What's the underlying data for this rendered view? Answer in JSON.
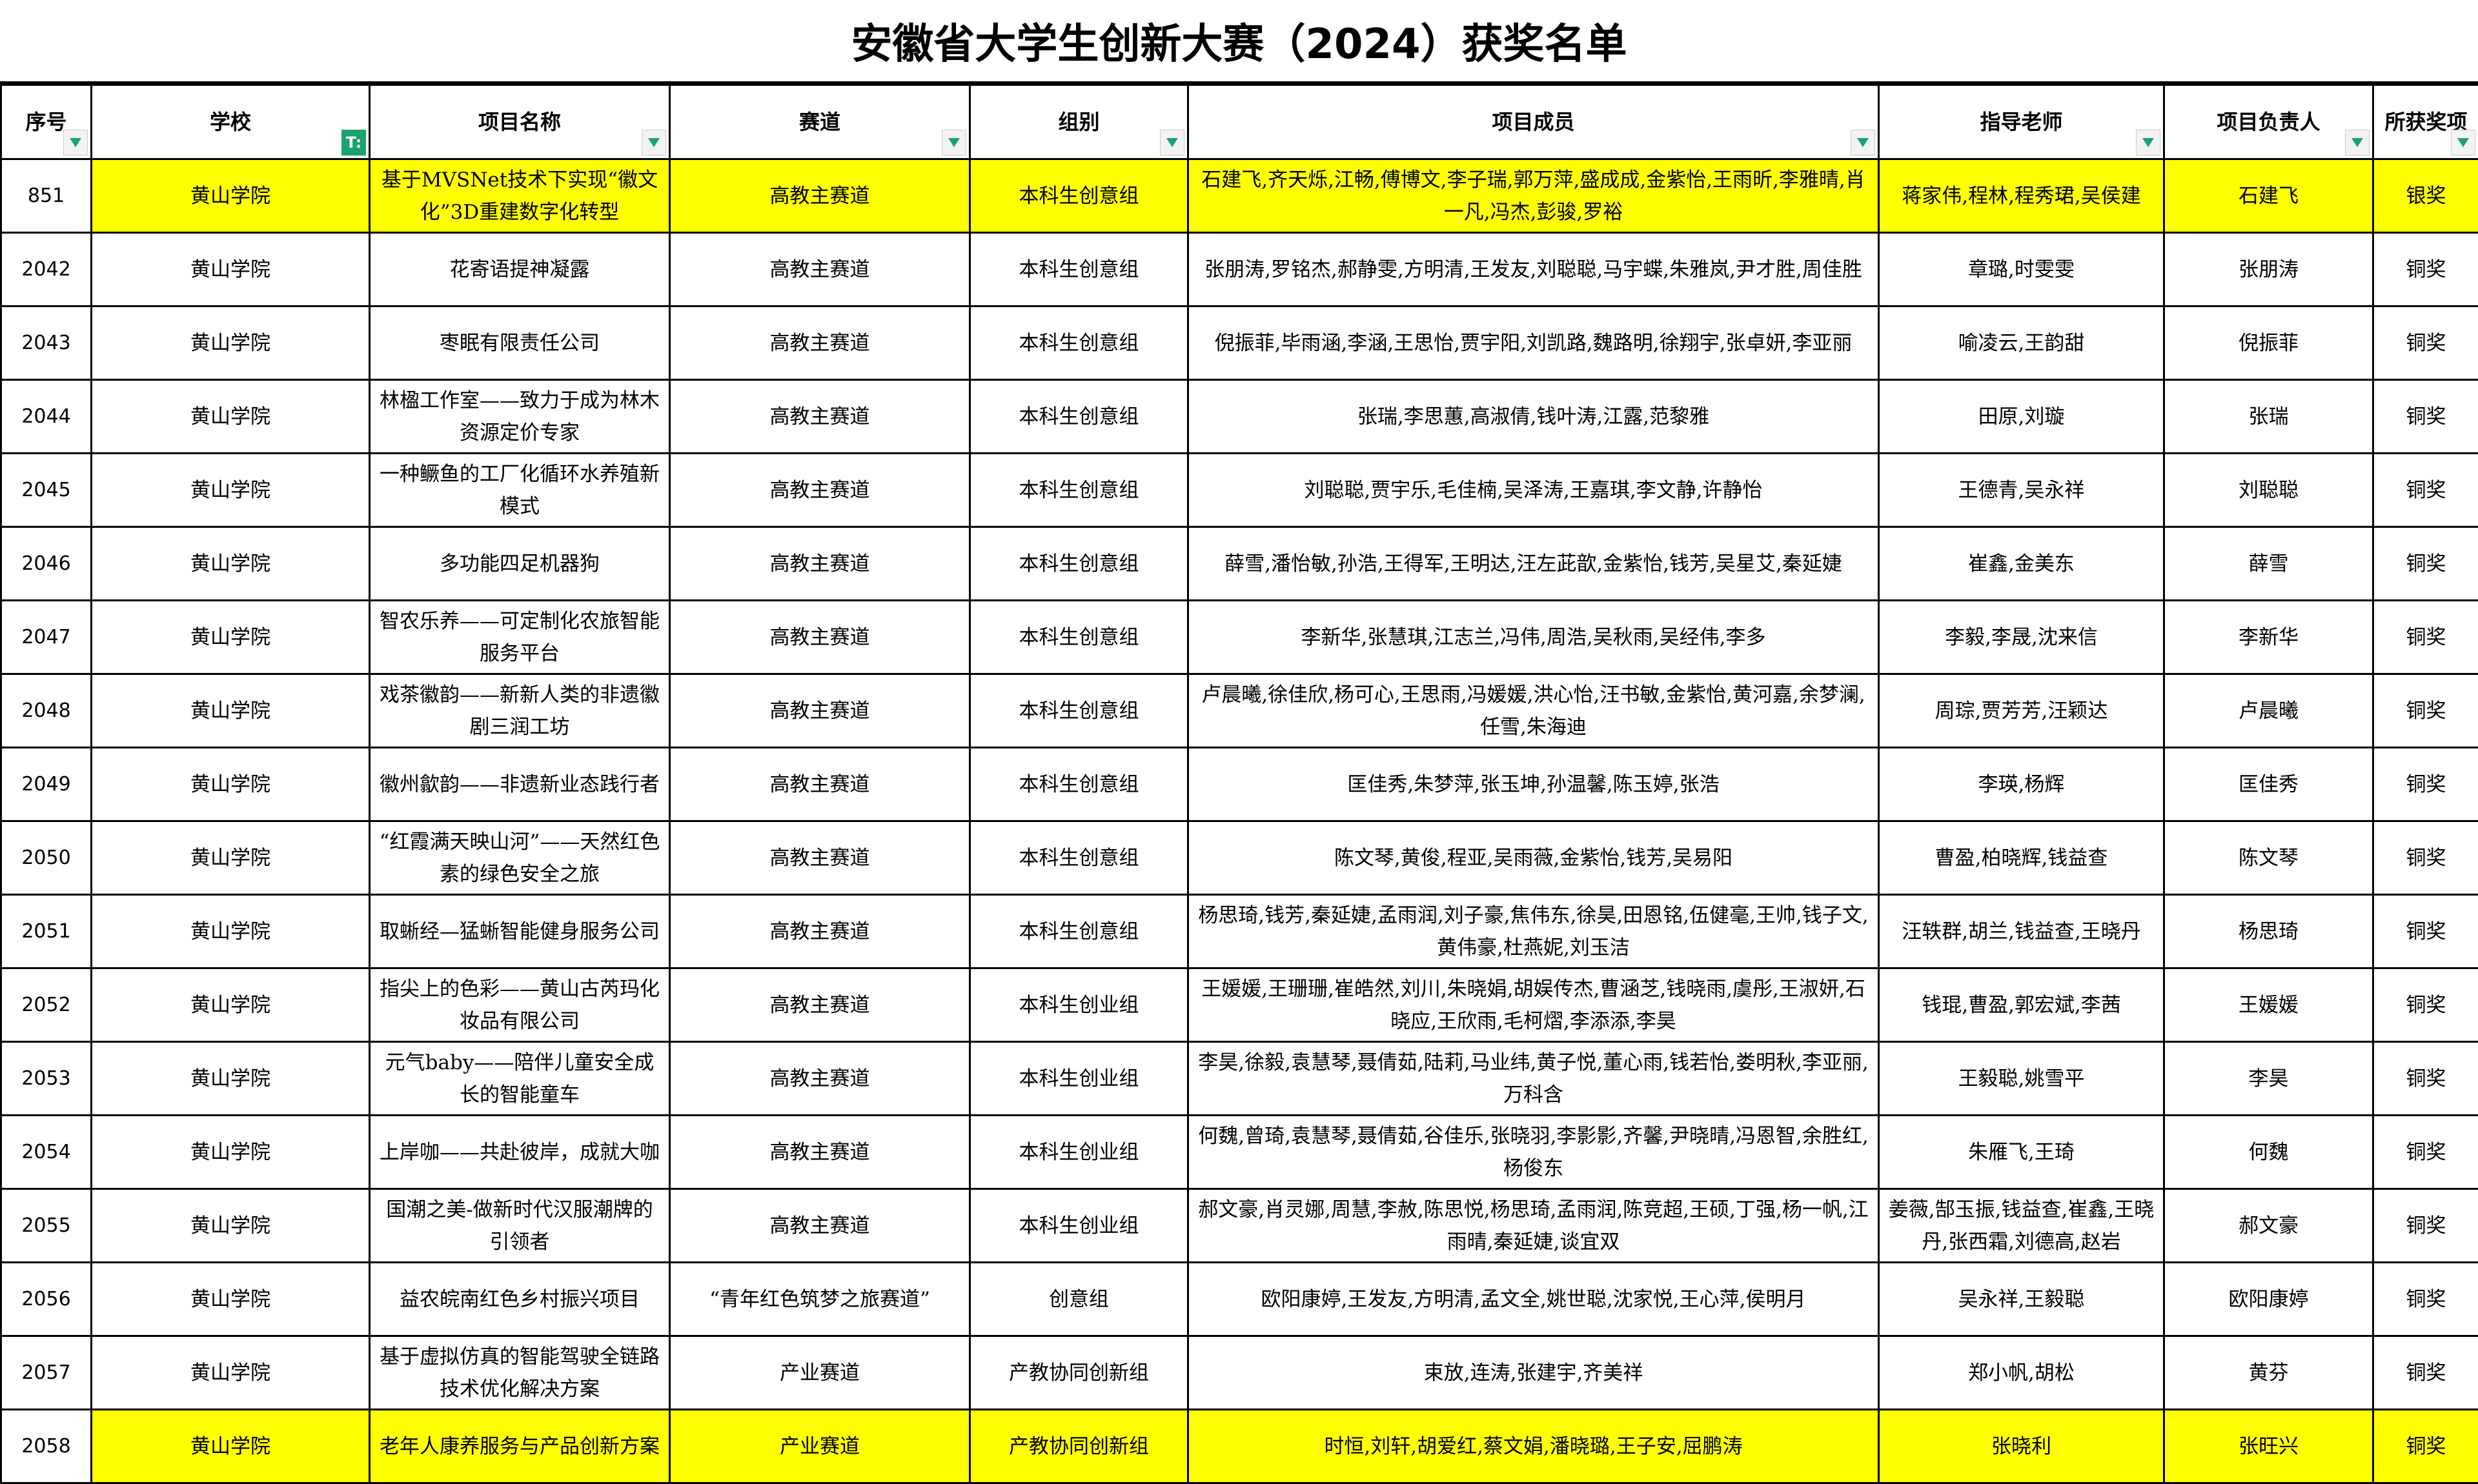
{
  "title": "安徽省大学生创新大赛（2024）获奖名单",
  "colors": {
    "highlight": "#ffff00",
    "filter_accent": "#1aa36b"
  },
  "headers": [
    "序号",
    "学校",
    "项目名称",
    "赛道",
    "组别",
    "项目成员",
    "指导老师",
    "项目负责人",
    "所获奖项"
  ],
  "active_filter_column": 1,
  "rows": [
    {
      "id": "851",
      "school": "黄山学院",
      "project": "基于MVSNet技术下实现“徽文化”3D重建数字化转型",
      "track": "高教主赛道",
      "group": "本科生创意组",
      "members": "石建飞,齐天烁,江畅,傅博文,李子瑞,郭万萍,盛成成,金紫怡,王雨昕,李雅晴,肖一凡,冯杰,彭骏,罗裕",
      "advisors": "蒋家伟,程林,程秀珺,吴侯建",
      "leader": "石建飞",
      "award": "银奖",
      "highlight": true
    },
    {
      "id": "2042",
      "school": "黄山学院",
      "project": "花寄语提神凝露",
      "track": "高教主赛道",
      "group": "本科生创意组",
      "members": "张朋涛,罗铭杰,郝静雯,方明清,王发友,刘聪聪,马宇蝶,朱雅岚,尹才胜,周佳胜",
      "advisors": "章璐,时雯雯",
      "leader": "张朋涛",
      "award": "铜奖"
    },
    {
      "id": "2043",
      "school": "黄山学院",
      "project": "枣眠有限责任公司",
      "track": "高教主赛道",
      "group": "本科生创意组",
      "members": "倪振菲,毕雨涵,李涵,王思怡,贾宇阳,刘凯路,魏路明,徐翔宇,张卓妍,李亚丽",
      "advisors": "喻凌云,王韵甜",
      "leader": "倪振菲",
      "award": "铜奖"
    },
    {
      "id": "2044",
      "school": "黄山学院",
      "project": "林楹工作室——致力于成为林木资源定价专家",
      "track": "高教主赛道",
      "group": "本科生创意组",
      "members": "张瑞,李思蕙,高淑倩,钱叶涛,江露,范黎雅",
      "advisors": "田原,刘璇",
      "leader": "张瑞",
      "award": "铜奖"
    },
    {
      "id": "2045",
      "school": "黄山学院",
      "project": "一种鳜鱼的工厂化循环水养殖新模式",
      "track": "高教主赛道",
      "group": "本科生创意组",
      "members": "刘聪聪,贾宇乐,毛佳楠,吴泽涛,王嘉琪,李文静,许静怡",
      "advisors": "王德青,吴永祥",
      "leader": "刘聪聪",
      "award": "铜奖"
    },
    {
      "id": "2046",
      "school": "黄山学院",
      "project": "多功能四足机器狗",
      "track": "高教主赛道",
      "group": "本科生创意组",
      "members": "薛雪,潘怡敏,孙浩,王得军,王明达,汪左茈歆,金紫怡,钱芳,吴星艾,秦延婕",
      "advisors": "崔鑫,金美东",
      "leader": "薛雪",
      "award": "铜奖"
    },
    {
      "id": "2047",
      "school": "黄山学院",
      "project": "智农乐养——可定制化农旅智能服务平台",
      "track": "高教主赛道",
      "group": "本科生创意组",
      "members": "李新华,张慧琪,江志兰,冯伟,周浩,吴秋雨,吴经伟,李多",
      "advisors": "李毅,李晟,沈来信",
      "leader": "李新华",
      "award": "铜奖"
    },
    {
      "id": "2048",
      "school": "黄山学院",
      "project": "戏茶徽韵——新新人类的非遗徽剧三润工坊",
      "track": "高教主赛道",
      "group": "本科生创意组",
      "members": "卢晨曦,徐佳欣,杨可心,王思雨,冯媛媛,洪心怡,汪书敏,金紫怡,黄河嘉,余梦澜,任雪,朱海迪",
      "advisors": "周琮,贾芳芳,汪颖达",
      "leader": "卢晨曦",
      "award": "铜奖"
    },
    {
      "id": "2049",
      "school": "黄山学院",
      "project": "徽州歙韵——非遗新业态践行者",
      "track": "高教主赛道",
      "group": "本科生创意组",
      "members": "匡佳秀,朱梦萍,张玉坤,孙温馨,陈玉婷,张浩",
      "advisors": "李瑛,杨辉",
      "leader": "匡佳秀",
      "award": "铜奖"
    },
    {
      "id": "2050",
      "school": "黄山学院",
      "project": "“红霞满天映山河”——天然红色素的绿色安全之旅",
      "track": "高教主赛道",
      "group": "本科生创意组",
      "members": "陈文琴,黄俊,程亚,吴雨薇,金紫怡,钱芳,吴易阳",
      "advisors": "曹盈,柏晓辉,钱益查",
      "leader": "陈文琴",
      "award": "铜奖"
    },
    {
      "id": "2051",
      "school": "黄山学院",
      "project": "取蜥经—猛蜥智能健身服务公司",
      "track": "高教主赛道",
      "group": "本科生创意组",
      "members": "杨思琦,钱芳,秦延婕,孟雨润,刘子豪,焦伟东,徐昊,田恩铭,伍健毫,王帅,钱子文,黄伟豪,杜燕妮,刘玉洁",
      "advisors": "汪轶群,胡兰,钱益查,王晓丹",
      "leader": "杨思琦",
      "award": "铜奖"
    },
    {
      "id": "2052",
      "school": "黄山学院",
      "project": "指尖上的色彩——黄山古芮玛化妆品有限公司",
      "track": "高教主赛道",
      "group": "本科生创业组",
      "members": "王媛媛,王珊珊,崔皓然,刘川,朱晓娟,胡娱传杰,曹涵芝,钱晓雨,虞彤,王淑妍,石晓应,王欣雨,毛柯熠,李添添,李昊",
      "advisors": "钱琨,曹盈,郭宏斌,李茜",
      "leader": "王媛媛",
      "award": "铜奖"
    },
    {
      "id": "2053",
      "school": "黄山学院",
      "project": "元气baby——陪伴儿童安全成长的智能童车",
      "track": "高教主赛道",
      "group": "本科生创业组",
      "members": "李昊,徐毅,袁慧琴,聂倩茹,陆莉,马业纬,黄子悦,董心雨,钱若怡,娄明秋,李亚丽,万科含",
      "advisors": "王毅聪,姚雪平",
      "leader": "李昊",
      "award": "铜奖"
    },
    {
      "id": "2054",
      "school": "黄山学院",
      "project": "上岸咖——共赴彼岸，成就大咖",
      "track": "高教主赛道",
      "group": "本科生创业组",
      "members": "何魏,曾琦,袁慧琴,聂倩茹,谷佳乐,张晓羽,李影影,齐馨,尹晓晴,冯恩智,余胜红,杨俊东",
      "advisors": "朱雁飞,王琦",
      "leader": "何魏",
      "award": "铜奖"
    },
    {
      "id": "2055",
      "school": "黄山学院",
      "project": "国潮之美-做新时代汉服潮牌的引领者",
      "track": "高教主赛道",
      "group": "本科生创业组",
      "members": "郝文豪,肖灵娜,周慧,李赦,陈思悦,杨思琦,孟雨润,陈竞超,王硕,丁强,杨一帆,江雨晴,秦延婕,谈宜双",
      "advisors": "姜薇,郜玉振,钱益查,崔鑫,王晓丹,张西霜,刘德高,赵岩",
      "leader": "郝文豪",
      "award": "铜奖"
    },
    {
      "id": "2056",
      "school": "黄山学院",
      "project": "益农皖南红色乡村振兴项目",
      "track": "“青年红色筑梦之旅赛道”",
      "group": "创意组",
      "members": "欧阳康婷,王发友,方明清,孟文全,姚世聪,沈家悦,王心萍,侯明月",
      "advisors": "吴永祥,王毅聪",
      "leader": "欧阳康婷",
      "award": "铜奖"
    },
    {
      "id": "2057",
      "school": "黄山学院",
      "project": "基于虚拟仿真的智能驾驶全链路技术优化解决方案",
      "track": "产业赛道",
      "group": "产教协同创新组",
      "members": "束放,连涛,张建宇,齐美祥",
      "advisors": "郑小帆,胡松",
      "leader": "黄芬",
      "award": "铜奖"
    },
    {
      "id": "2058",
      "school": "黄山学院",
      "project": "老年人康养服务与产品创新方案",
      "track": "产业赛道",
      "group": "产教协同创新组",
      "members": "时恒,刘轩,胡爱红,蔡文娟,潘晓璐,王子安,屈鹏涛",
      "advisors": "张晓利",
      "leader": "张旺兴",
      "award": "铜奖",
      "highlight": true
    }
  ]
}
